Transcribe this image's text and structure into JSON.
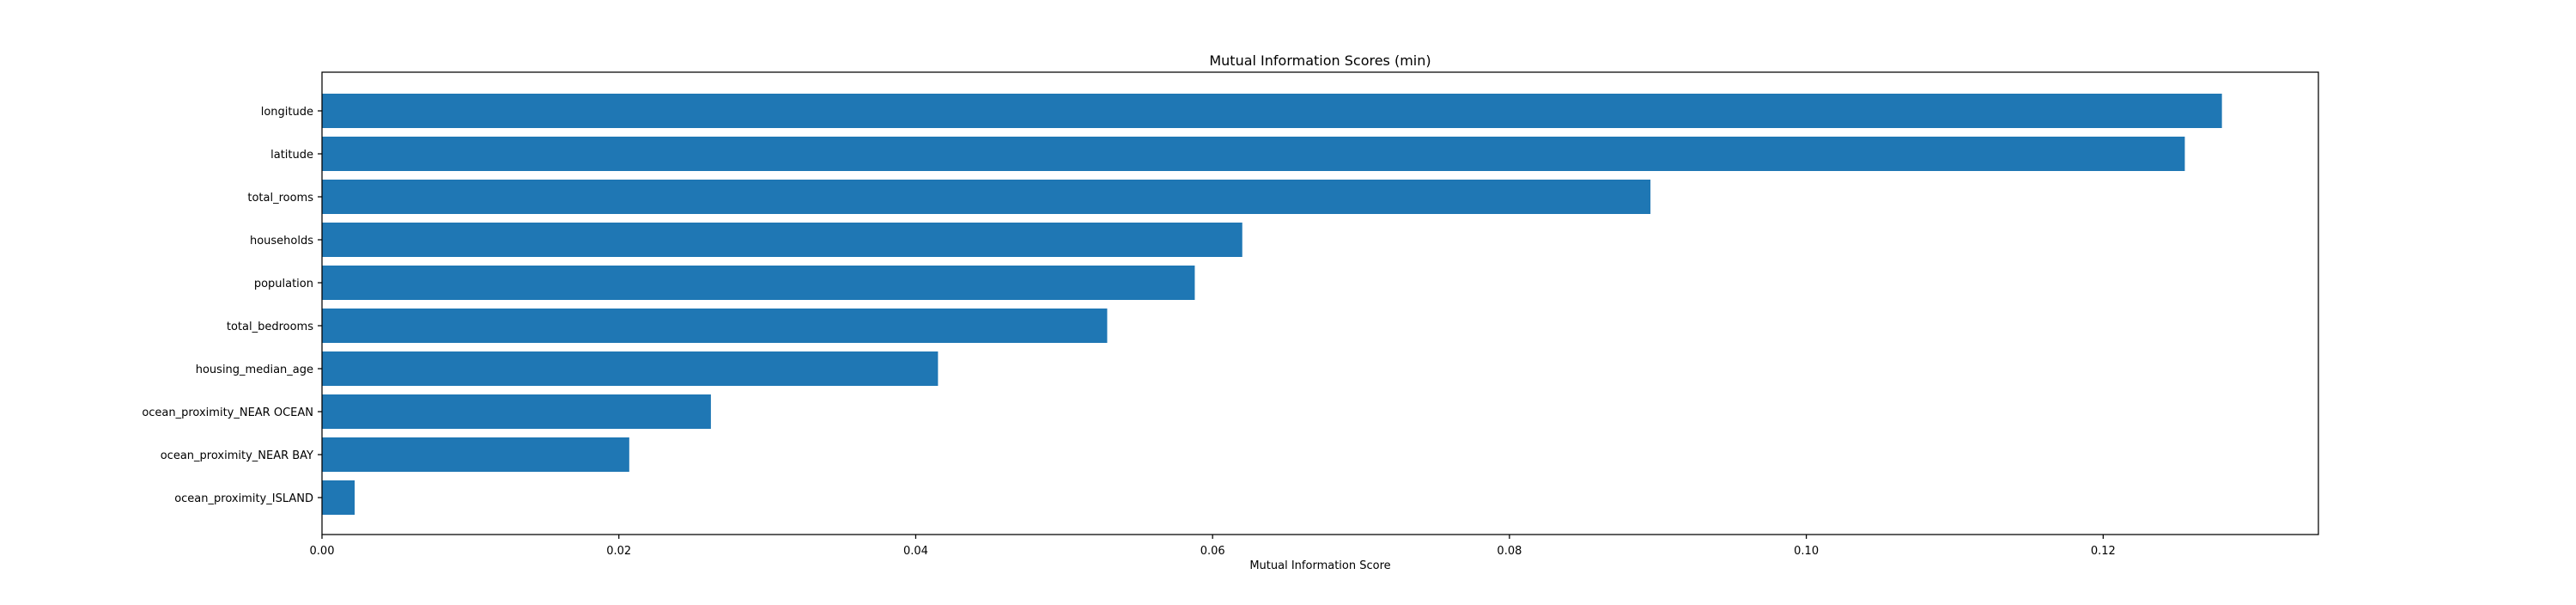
{
  "chart_data": {
    "type": "bar",
    "orientation": "horizontal",
    "title": "Mutual Information Scores (min)",
    "xlabel": "Mutual Information Score",
    "ylabel": "",
    "categories": [
      "longitude",
      "latitude",
      "total_rooms",
      "households",
      "population",
      "total_bedrooms",
      "housing_median_age",
      "ocean_proximity_NEAR OCEAN",
      "ocean_proximity_NEAR BAY",
      "ocean_proximity_ISLAND"
    ],
    "values": [
      0.128,
      0.1255,
      0.0895,
      0.062,
      0.0588,
      0.0529,
      0.0415,
      0.0262,
      0.0207,
      0.0022
    ],
    "xlim": [
      0,
      0.1345
    ],
    "xticks": [
      0.0,
      0.02,
      0.04,
      0.06,
      0.08,
      0.1,
      0.12
    ],
    "xtick_labels": [
      "0.00",
      "0.02",
      "0.04",
      "0.06",
      "0.08",
      "0.10",
      "0.12"
    ],
    "bar_color": "#1f77b4",
    "grid": false,
    "legend": "none"
  }
}
